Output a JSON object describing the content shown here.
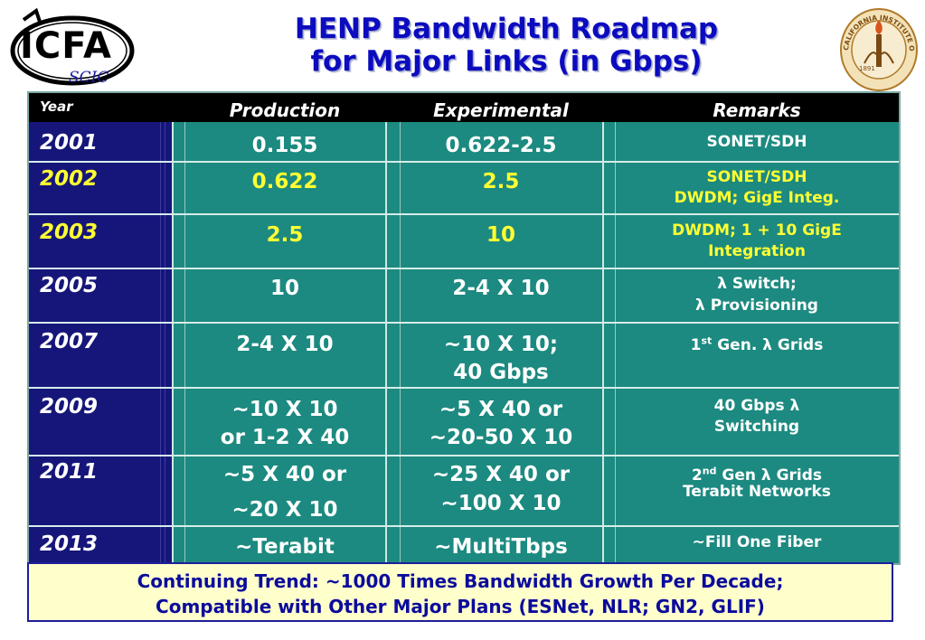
{
  "logos": {
    "icfa_text": "ICFA",
    "icfa_sub": "SCIC",
    "seal_text": "CALIFORNIA INSTITUTE OF TECHNOLOGY",
    "seal_year": "1891"
  },
  "title": {
    "line1": "HENP Bandwidth Roadmap",
    "line2": "for Major Links (in Gbps)"
  },
  "table": {
    "headers": [
      "Year",
      "Production",
      "Experimental",
      "Remarks"
    ],
    "rows": [
      {
        "year": "2001",
        "production": [
          "0.155"
        ],
        "experimental": [
          "0.622-2.5"
        ],
        "remarks": [
          "SONET/SDH"
        ],
        "highlight": false
      },
      {
        "year": "2002",
        "production": [
          "0.622"
        ],
        "experimental": [
          "2.5"
        ],
        "remarks": [
          "SONET/SDH",
          "DWDM; GigE Integ."
        ],
        "highlight": true
      },
      {
        "year": "2003",
        "production": [
          "2.5"
        ],
        "experimental": [
          "10"
        ],
        "remarks": [
          "DWDM; 1 + 10 GigE",
          "Integration"
        ],
        "highlight": true
      },
      {
        "year": "2005",
        "production": [
          "10"
        ],
        "experimental": [
          "2-4 X 10"
        ],
        "remarks": [
          "λ Switch;",
          "λ Provisioning"
        ],
        "highlight": false
      },
      {
        "year": "2007",
        "production": [
          "2-4 X 10"
        ],
        "experimental": [
          "~10 X 10;",
          "40 Gbps"
        ],
        "remarks": [
          "1st Gen. λ Grids"
        ],
        "highlight": false
      },
      {
        "year": "2009",
        "production": [
          "~10 X 10",
          "or  1-2 X 40"
        ],
        "experimental": [
          "~5 X 40 or",
          "~20-50 X 10"
        ],
        "remarks": [
          "40 Gbps λ",
          "Switching"
        ],
        "highlight": false
      },
      {
        "year": "2011",
        "production": [
          "~5 X 40 or",
          "~20 X 10"
        ],
        "experimental": [
          "~25 X 40 or",
          "~100 X 10"
        ],
        "remarks": [
          "2nd Gen λ Grids",
          "Terabit Networks"
        ],
        "highlight": false
      },
      {
        "year": "2013",
        "production": [
          "~Terabit"
        ],
        "experimental": [
          "~MultiTbps"
        ],
        "remarks": [
          "~Fill One Fiber"
        ],
        "highlight": false
      }
    ]
  },
  "footer": {
    "line1": "Continuing Trend: ~1000 Times Bandwidth Growth Per Decade;",
    "line2": "Compatible with Other Major Plans (ESNet, NLR; GN2, GLIF)"
  }
}
